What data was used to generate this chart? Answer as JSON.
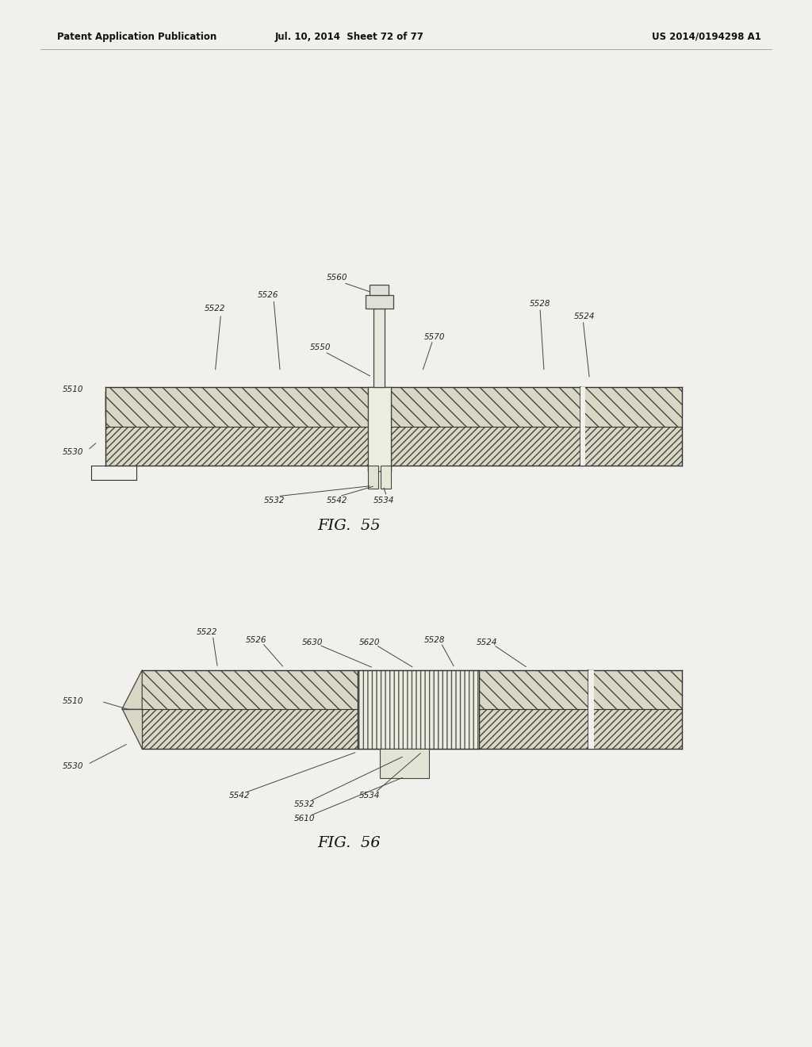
{
  "bg_color": "#f2f0ec",
  "header_text": "Patent Application Publication",
  "header_date": "Jul. 10, 2014  Sheet 72 of 77",
  "header_patent": "US 2014/0194298 A1",
  "fig55_caption": "FIG.  55",
  "fig56_caption": "FIG.  56"
}
